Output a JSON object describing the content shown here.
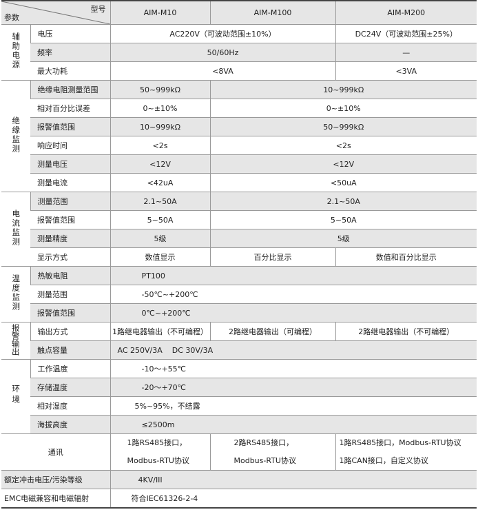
{
  "header": {
    "model_label": "型号",
    "param_label": "参数",
    "models": [
      "AIM-M10",
      "AIM-M100",
      "AIM-M200"
    ]
  },
  "groups": {
    "aux": "辅助电源",
    "ins": "绝缘监测",
    "cur": "电流监测",
    "temp": "温度监测",
    "alarm": "报警输出",
    "env": "环境"
  },
  "rows": {
    "voltage": {
      "label": "电压",
      "a": "AC220V（可波动范围±10%）",
      "b": "DC24V（可波动范围±25%）"
    },
    "freq": {
      "label": "频率",
      "a": "50/60Hz",
      "b": "—"
    },
    "power": {
      "label": "最大功耗",
      "a": "<8VA",
      "b": "<3VA"
    },
    "ins_range": {
      "label": "绝缘电阻测量范围",
      "a": "50~999kΩ",
      "b": "10~999kΩ"
    },
    "rel_err": {
      "label": "相对百分比误差",
      "a": "0~±10%",
      "b": "0~±10%"
    },
    "ins_alarm": {
      "label": "报警值范围",
      "a": "10~999kΩ",
      "b": "50~999kΩ"
    },
    "resp": {
      "label": "响应时间",
      "a": "<2s",
      "b": "<2s"
    },
    "meas_v": {
      "label": "测量电压",
      "a": "<12V",
      "b": "<12V"
    },
    "meas_i": {
      "label": "测量电流",
      "a": "<42uA",
      "b": "<50uA"
    },
    "cur_range": {
      "label": "测量范围",
      "a": "2.1~50A",
      "b": "2.1~50A"
    },
    "cur_alarm": {
      "label": "报警值范围",
      "a": "5~50A",
      "b": "5~50A"
    },
    "cur_acc": {
      "label": "测量精度",
      "a": "5级",
      "b": "5级"
    },
    "display": {
      "label": "显示方式",
      "a": "数值显示",
      "b": "百分比显示",
      "c": "数值和百分比显示"
    },
    "thermistor": {
      "label": "热敏电阻",
      "a": "PT100"
    },
    "temp_range": {
      "label": "测量范围",
      "a": "-50℃~+200℃"
    },
    "temp_alarm": {
      "label": "报警值范围",
      "a": "0℃~+200℃"
    },
    "output": {
      "label": "输出方式",
      "a": "1路继电器输出（不可编程）",
      "b": "2路继电器输出（可编程）",
      "c": "2路继电器输出（不可编程）"
    },
    "contact": {
      "label": "触点容量",
      "a": "AC 250V/3A    DC 30V/3A"
    },
    "work_temp": {
      "label": "工作温度",
      "a": "-10～+55℃"
    },
    "store_temp": {
      "label": "存储温度",
      "a": "-20～+70℃"
    },
    "humidity": {
      "label": "相对湿度",
      "a": "5%~95%，不结露"
    },
    "altitude": {
      "label": "海拔高度",
      "a": "≤2500m"
    },
    "comm": {
      "label": "通讯",
      "a1": "1路RS485接口，",
      "a2": "Modbus-RTU协议",
      "b1": "2路RS485接口，",
      "b2": "Modbus-RTU协议",
      "c1": "1路RS485接口，Modbus-RTU协议",
      "c2": "1路CAN接口，自定义协议"
    },
    "impulse": {
      "label": "额定冲击电压/污染等级",
      "a": "4KV/III"
    },
    "emc": {
      "label": "EMC电磁兼容和电磁辐射",
      "a": "符合IEC61326-2-4"
    }
  }
}
